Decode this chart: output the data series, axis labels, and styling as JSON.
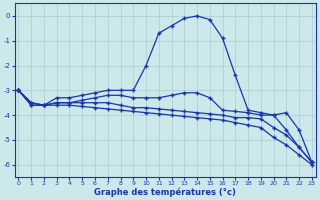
{
  "xlabel": "Graphe des températures (°c)",
  "x": [
    0,
    1,
    2,
    3,
    4,
    5,
    6,
    7,
    8,
    9,
    10,
    11,
    12,
    13,
    14,
    15,
    16,
    17,
    18,
    19,
    20,
    21,
    22,
    23
  ],
  "line1": [
    -3.0,
    -3.5,
    -3.6,
    -3.3,
    -3.3,
    -3.2,
    -3.1,
    -3.0,
    -3.0,
    -3.0,
    -2.0,
    -0.7,
    -0.4,
    -0.1,
    0.0,
    -0.15,
    -0.9,
    -2.4,
    -3.8,
    -3.9,
    -4.0,
    -4.6,
    -5.3,
    -5.9
  ],
  "line2": [
    -3.0,
    -3.5,
    -3.6,
    -3.5,
    -3.5,
    -3.4,
    -3.3,
    -3.2,
    -3.2,
    -3.3,
    -3.3,
    -3.3,
    -3.2,
    -3.1,
    -3.1,
    -3.3,
    -3.8,
    -3.85,
    -3.9,
    -4.0,
    -4.0,
    -3.9,
    -4.6,
    -5.9
  ],
  "line3": [
    -3.0,
    -3.6,
    -3.6,
    -3.5,
    -3.5,
    -3.5,
    -3.5,
    -3.5,
    -3.6,
    -3.7,
    -3.7,
    -3.75,
    -3.8,
    -3.85,
    -3.9,
    -3.95,
    -4.0,
    -4.1,
    -4.1,
    -4.15,
    -4.5,
    -4.8,
    -5.3,
    -5.9
  ],
  "line4": [
    -3.0,
    -3.6,
    -3.6,
    -3.6,
    -3.6,
    -3.65,
    -3.7,
    -3.75,
    -3.8,
    -3.85,
    -3.9,
    -3.95,
    -4.0,
    -4.05,
    -4.1,
    -4.15,
    -4.2,
    -4.3,
    -4.4,
    -4.5,
    -4.9,
    -5.2,
    -5.6,
    -6.0
  ],
  "bg_color": "#cce8ea",
  "grid_color": "#aacdd0",
  "line_color": "#1a35aa",
  "ylim": [
    -6.5,
    0.5
  ],
  "xlim": [
    -0.3,
    23.3
  ],
  "yticks": [
    0,
    -1,
    -2,
    -3,
    -4,
    -5,
    -6
  ],
  "xticks": [
    0,
    1,
    2,
    3,
    4,
    5,
    6,
    7,
    8,
    9,
    10,
    11,
    12,
    13,
    14,
    15,
    16,
    17,
    18,
    19,
    20,
    21,
    22,
    23
  ]
}
